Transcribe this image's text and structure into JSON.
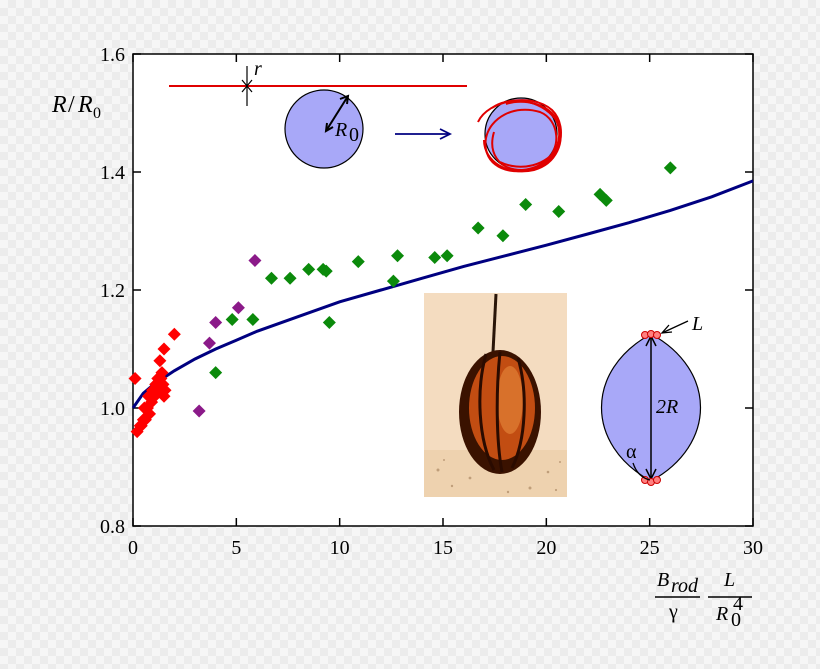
{
  "chart_data": {
    "type": "scatter",
    "title": "",
    "xlabel": "B_rod / γ · L / R0^4",
    "ylabel": "R/R0",
    "xlim": [
      0,
      30
    ],
    "ylim": [
      0.8,
      1.6
    ],
    "x_ticks": [
      0,
      5,
      10,
      15,
      20,
      25,
      30
    ],
    "y_ticks": [
      0.8,
      1.0,
      1.2,
      1.4,
      1.6
    ],
    "y_tick_labels": [
      "0.8",
      "1.0",
      "1.2",
      "1.4",
      "1.6"
    ],
    "grid": false,
    "series": [
      {
        "name": "red",
        "color": "#ff0000",
        "marker": "diamond",
        "points": [
          [
            0.1,
            1.05
          ],
          [
            0.2,
            0.96
          ],
          [
            0.35,
            0.97
          ],
          [
            0.4,
            0.97
          ],
          [
            0.5,
            0.98
          ],
          [
            0.55,
            1.0
          ],
          [
            0.6,
            0.98
          ],
          [
            0.7,
            1.0
          ],
          [
            0.75,
            1.02
          ],
          [
            0.8,
            0.99
          ],
          [
            0.85,
            1.02
          ],
          [
            0.9,
            1.01
          ],
          [
            0.95,
            1.03
          ],
          [
            1.0,
            1.03
          ],
          [
            1.05,
            1.02
          ],
          [
            1.1,
            1.04
          ],
          [
            1.15,
            1.03
          ],
          [
            1.2,
            1.05
          ],
          [
            1.25,
            1.04
          ],
          [
            1.3,
            1.03
          ],
          [
            1.35,
            1.05
          ],
          [
            1.4,
            1.06
          ],
          [
            1.45,
            1.04
          ],
          [
            1.5,
            1.02
          ],
          [
            1.55,
            1.03
          ],
          [
            1.3,
            1.08
          ],
          [
            1.5,
            1.1
          ],
          [
            2.0,
            1.125
          ]
        ]
      },
      {
        "name": "purple",
        "color": "#8b1a89",
        "marker": "diamond",
        "points": [
          [
            3.2,
            0.995
          ],
          [
            3.7,
            1.11
          ],
          [
            4.0,
            1.145
          ],
          [
            5.1,
            1.17
          ],
          [
            5.9,
            1.25
          ]
        ]
      },
      {
        "name": "green",
        "color": "#0b8a0b",
        "marker": "diamond",
        "points": [
          [
            4.0,
            1.06
          ],
          [
            4.8,
            1.15
          ],
          [
            5.8,
            1.15
          ],
          [
            6.7,
            1.22
          ],
          [
            7.6,
            1.22
          ],
          [
            8.5,
            1.235
          ],
          [
            9.2,
            1.235
          ],
          [
            9.35,
            1.232
          ],
          [
            9.5,
            1.145
          ],
          [
            10.9,
            1.248
          ],
          [
            12.6,
            1.215
          ],
          [
            12.8,
            1.258
          ],
          [
            14.6,
            1.255
          ],
          [
            15.2,
            1.258
          ],
          [
            16.7,
            1.305
          ],
          [
            17.9,
            1.292
          ],
          [
            19.0,
            1.345
          ],
          [
            20.6,
            1.333
          ],
          [
            22.6,
            1.362
          ],
          [
            22.9,
            1.352
          ],
          [
            26.0,
            1.407
          ]
        ]
      },
      {
        "name": "model",
        "color": "#000080",
        "marker": "line",
        "points": [
          [
            0,
            1.0
          ],
          [
            0.5,
            1.025
          ],
          [
            1,
            1.04
          ],
          [
            2,
            1.063
          ],
          [
            3,
            1.083
          ],
          [
            4,
            1.1
          ],
          [
            5,
            1.115
          ],
          [
            6,
            1.13
          ],
          [
            8,
            1.155
          ],
          [
            10,
            1.18
          ],
          [
            12,
            1.2
          ],
          [
            14,
            1.22
          ],
          [
            16,
            1.24
          ],
          [
            18,
            1.258
          ],
          [
            20,
            1.276
          ],
          [
            22,
            1.295
          ],
          [
            24,
            1.314
          ],
          [
            26,
            1.335
          ],
          [
            28,
            1.358
          ],
          [
            30,
            1.385
          ]
        ]
      }
    ],
    "annotations": {
      "r": "r",
      "R0_symbol": "R",
      "R0_subscript": "0",
      "L": "L",
      "two_R": "2R",
      "alpha": "α",
      "xlabel_B": "B",
      "xlabel_rod": "rod",
      "xlabel_gamma": "γ",
      "xlabel_L": "L",
      "xlabel_R": "R",
      "xlabel_R_sub": "0",
      "xlabel_R_sup": "4",
      "ylabel_R": "R",
      "ylabel_slash": "/",
      "ylabel_R0": "R",
      "ylabel_R0_sub": "0"
    }
  },
  "colors": {
    "diagram_fill": "#a8a8f8",
    "rod_red": "#e00000",
    "arrow_blue": "#000080",
    "photo_bg": "#f4dcc0",
    "droplet_dark": "#3a1200",
    "droplet_orange": "#c24d12"
  }
}
